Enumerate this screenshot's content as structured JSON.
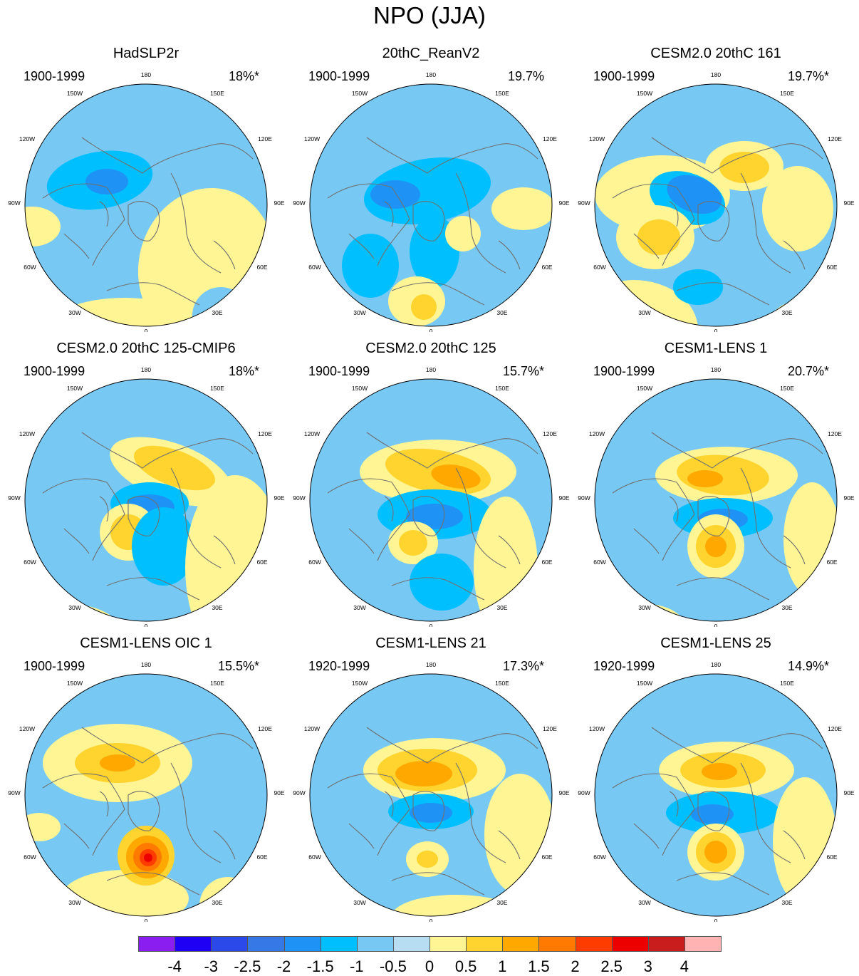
{
  "title": "NPO (JJA)",
  "panels": [
    {
      "title": "HadSLP2r",
      "years": "1900-1999",
      "variance": "18%*"
    },
    {
      "title": "20thC_ReanV2",
      "years": "1900-1999",
      "variance": "19.7%"
    },
    {
      "title": "CESM2.0 20thC 161",
      "years": "1900-1999",
      "variance": "19.7%*"
    },
    {
      "title": "CESM2.0 20thC 125-CMIP6",
      "years": "1900-1999",
      "variance": "18%*"
    },
    {
      "title": "CESM2.0 20thC 125",
      "years": "1900-1999",
      "variance": "15.7%*"
    },
    {
      "title": "CESM1-LENS 1",
      "years": "1900-1999",
      "variance": "20.7%*"
    },
    {
      "title": "CESM1-LENS OIC 1",
      "years": "1900-1999",
      "variance": "15.5%*"
    },
    {
      "title": "CESM1-LENS 21",
      "years": "1920-1999",
      "variance": "17.3%*"
    },
    {
      "title": "CESM1-LENS 25",
      "years": "1920-1999",
      "variance": "14.9%*"
    }
  ],
  "longitude_labels": [
    "180",
    "150E",
    "120E",
    "90E",
    "60E",
    "30E",
    "0",
    "30W",
    "60W",
    "90W",
    "120W",
    "150W"
  ],
  "colorbar": {
    "labels": [
      "-4",
      "-3",
      "-2.5",
      "-2",
      "-1.5",
      "-1",
      "-0.5",
      "0",
      "0.5",
      "1",
      "1.5",
      "2",
      "2.5",
      "3",
      "4"
    ],
    "colors": [
      "#8a1ef0",
      "#1f00f5",
      "#2b48e8",
      "#3578e6",
      "#1e93f5",
      "#00bfff",
      "#78c8f4",
      "#b7ddf2",
      "#fff595",
      "#ffd42e",
      "#ffa800",
      "#ff7a00",
      "#ff3c00",
      "#ec0000",
      "#c91c1c",
      "#ffb3b3"
    ]
  },
  "colors": {
    "neg_light": "#b7ddf2",
    "pos_light": "#fff595",
    "coast": "#707070"
  }
}
